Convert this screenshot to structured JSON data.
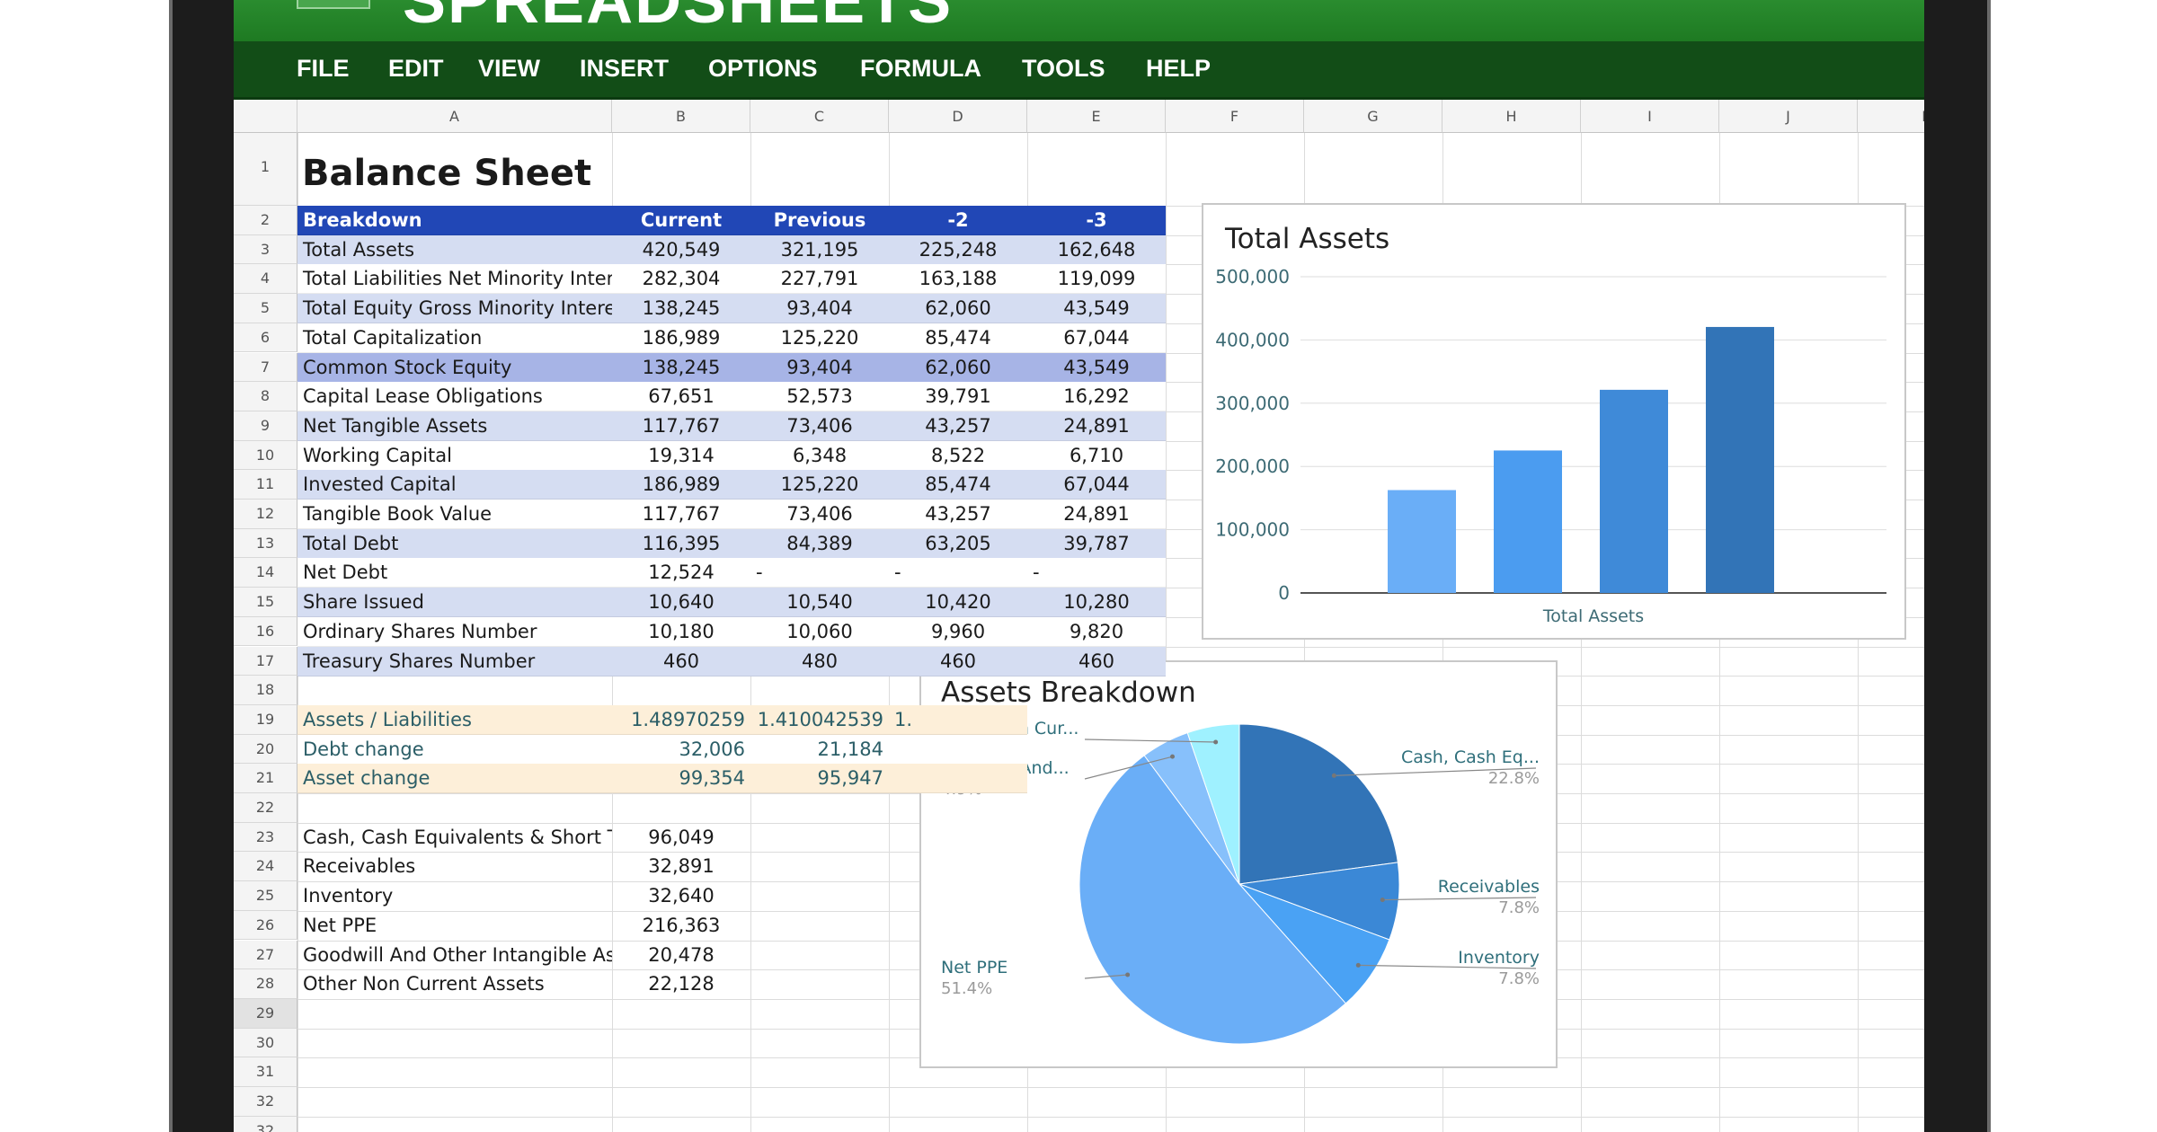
{
  "app": {
    "banner_title": "SPREADSHEETS",
    "menu": [
      "FILE",
      "EDIT",
      "VIEW",
      "INSERT",
      "OPTIONS",
      "FORMULA",
      "TOOLS",
      "HELP"
    ]
  },
  "columns": [
    "A",
    "B",
    "C",
    "D",
    "E",
    "F",
    "G",
    "H",
    "I",
    "J",
    "K"
  ],
  "row_numbers": [
    "1",
    "2",
    "3",
    "4",
    "5",
    "6",
    "7",
    "8",
    "9",
    "10",
    "11",
    "12",
    "13",
    "14",
    "15",
    "16",
    "17",
    "18",
    "19",
    "20",
    "21",
    "22",
    "23",
    "24",
    "25",
    "26",
    "27",
    "28",
    "29",
    "30",
    "31",
    "32",
    "32"
  ],
  "sheet": {
    "title": "Balance Sheet",
    "header": [
      "Breakdown",
      "Current",
      "Previous",
      "-2",
      "-3"
    ],
    "rows": [
      [
        "Total Assets",
        "420,549",
        "321,195",
        "225,248",
        "162,648"
      ],
      [
        "Total Liabilities Net Minority Intere",
        "282,304",
        "227,791",
        "163,188",
        "119,099"
      ],
      [
        "Total Equity Gross Minority Interes",
        "138,245",
        "93,404",
        "62,060",
        "43,549"
      ],
      [
        "Total Capitalization",
        "186,989",
        "125,220",
        "85,474",
        "67,044"
      ],
      [
        "Common Stock Equity",
        "138,245",
        "93,404",
        "62,060",
        "43,549"
      ],
      [
        "Capital Lease Obligations",
        "67,651",
        "52,573",
        "39,791",
        "16,292"
      ],
      [
        "Net Tangible Assets",
        "117,767",
        "73,406",
        "43,257",
        "24,891"
      ],
      [
        "Working Capital",
        "19,314",
        "6,348",
        "8,522",
        "6,710"
      ],
      [
        "Invested Capital",
        "186,989",
        "125,220",
        "85,474",
        "67,044"
      ],
      [
        "Tangible Book Value",
        "117,767",
        "73,406",
        "43,257",
        "24,891"
      ],
      [
        "Total Debt",
        "116,395",
        "84,389",
        "63,205",
        "39,787"
      ],
      [
        "Net Debt",
        "12,524",
        "-",
        "-",
        "-"
      ],
      [
        "Share Issued",
        "10,640",
        "10,540",
        "10,420",
        "10,280"
      ],
      [
        "Ordinary Shares Number",
        "10,180",
        "10,060",
        "9,960",
        "9,820"
      ],
      [
        "Treasury Shares Number",
        "460",
        "480",
        "460",
        "460"
      ]
    ],
    "ratio_rows": [
      [
        "Assets / Liabilities",
        "1.48970259",
        "1.410042539",
        "1."
      ],
      [
        "Debt change",
        "32,006",
        "21,184",
        ""
      ],
      [
        "Asset change",
        "99,354",
        "95,947",
        ""
      ]
    ],
    "asset_rows": [
      [
        "Cash, Cash Equivalents & Short Te",
        "96,049"
      ],
      [
        "Receivables",
        "32,891"
      ],
      [
        "Inventory",
        "32,640"
      ],
      [
        "Net PPE",
        "216,363"
      ],
      [
        "Goodwill And Other Intangible Ass",
        "20,478"
      ],
      [
        "Other Non Current Assets",
        "22,128"
      ]
    ]
  },
  "colors": {
    "header_blue": "#2147b6",
    "band_light": "#d5ddf2",
    "band_selected": "#a7b4e6",
    "band_cream": "#fdefd9",
    "teal_text": "#2b5e67"
  },
  "chart_data": [
    {
      "type": "bar",
      "title": "Total Assets",
      "categories": [
        "-3",
        "-2",
        "Previous",
        "Current"
      ],
      "values": [
        162648,
        225248,
        321195,
        420549
      ],
      "colors": [
        "#6aaef7",
        "#4b9cf0",
        "#3f8ad8",
        "#3274b7"
      ],
      "xlabel": "Total Assets",
      "ylabel": "",
      "ylim": [
        0,
        500000
      ],
      "yticks": [
        0,
        100000,
        200000,
        300000,
        400000,
        500000
      ],
      "ytick_labels": [
        "0",
        "100,000",
        "200,000",
        "300,000",
        "400,000",
        "500,000"
      ],
      "grid": true
    },
    {
      "type": "pie",
      "title": "Assets Breakdown",
      "slices": [
        {
          "label": "Cash, Cash Eq...",
          "value": 96049,
          "pct": "22.8%",
          "color": "#3274b7"
        },
        {
          "label": "Receivables",
          "value": 32891,
          "pct": "7.8%",
          "color": "#3b88d6"
        },
        {
          "label": "Inventory",
          "value": 32640,
          "pct": "7.8%",
          "color": "#4aa2f4"
        },
        {
          "label": "Net PPE",
          "value": 216363,
          "pct": "51.4%",
          "color": "#6aaef7"
        },
        {
          "label": "Goodwill And...",
          "value": 20478,
          "pct": "4.9%",
          "color": "#87c0fb"
        },
        {
          "label": "Other Non Cur...",
          "value": 22128,
          "pct": "5.3%",
          "color": "#9ff1ff"
        }
      ]
    }
  ]
}
